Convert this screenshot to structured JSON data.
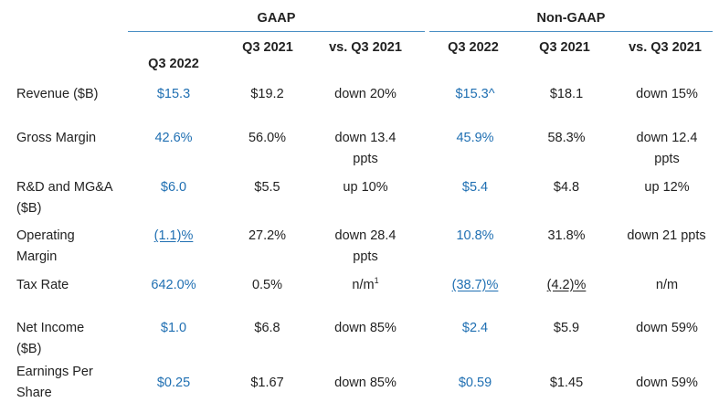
{
  "groups": {
    "gaap": "GAAP",
    "non_gaap": "Non-GAAP"
  },
  "headers": {
    "gaap_current": "Q3 2022",
    "gaap_prior": "Q3 2021",
    "gaap_change": "vs. Q3 2021",
    "ng_current": "Q3 2022",
    "ng_prior": "Q3 2021",
    "ng_change": "vs. Q3 2021"
  },
  "rows": [
    {
      "label": "Revenue ($B)",
      "gaap_q3_2022": "$15.3",
      "gaap_q3_2021": "$19.2",
      "gaap_vs": "down 20%",
      "ng_q3_2022": "$15.3^",
      "ng_q3_2021": "$18.1",
      "ng_vs": "down 15%"
    },
    {
      "label": "Gross Margin",
      "gaap_q3_2022": "42.6%",
      "gaap_q3_2021": "56.0%",
      "gaap_vs": "down 13.4 ppts",
      "ng_q3_2022": "45.9%",
      "ng_q3_2021": "58.3%",
      "ng_vs": "down 12.4 ppts"
    },
    {
      "label": "R&D and MG&A ($B)",
      "gaap_q3_2022": "$6.0",
      "gaap_q3_2021": "$5.5",
      "gaap_vs": "up 10%",
      "ng_q3_2022": "$5.4",
      "ng_q3_2021": "$4.8",
      "ng_vs": "up 12%"
    },
    {
      "label": "Operating Margin",
      "gaap_q3_2022": "(1.1)%",
      "gaap_q3_2021": "27.2%",
      "gaap_vs": "down 28.4 ppts",
      "ng_q3_2022": "10.8%",
      "ng_q3_2021": "31.8%",
      "ng_vs": "down 21 ppts"
    },
    {
      "label": "Tax Rate",
      "gaap_q3_2022": "642.0%",
      "gaap_q3_2021": "0.5%",
      "gaap_vs": "n/m",
      "gaap_vs_note": "1",
      "ng_q3_2022": "(38.7)%",
      "ng_q3_2021": "(4.2)%",
      "ng_vs": "n/m"
    },
    {
      "label": "Net Income ($B)",
      "gaap_q3_2022": "$1.0",
      "gaap_q3_2021": "$6.8",
      "gaap_vs": "down 85%",
      "ng_q3_2022": "$2.4",
      "ng_q3_2021": "$5.9",
      "ng_vs": "down 59%"
    },
    {
      "label": "Earnings Per Share",
      "gaap_q3_2022": "$0.25",
      "gaap_q3_2021": "$1.67",
      "gaap_vs": "down 85%",
      "ng_q3_2022": "$0.59",
      "ng_q3_2021": "$1.45",
      "ng_vs": "down 59%"
    }
  ],
  "colors": {
    "accent": "#1f6fb2",
    "rule": "#4a8fc4",
    "text": "#222222"
  }
}
